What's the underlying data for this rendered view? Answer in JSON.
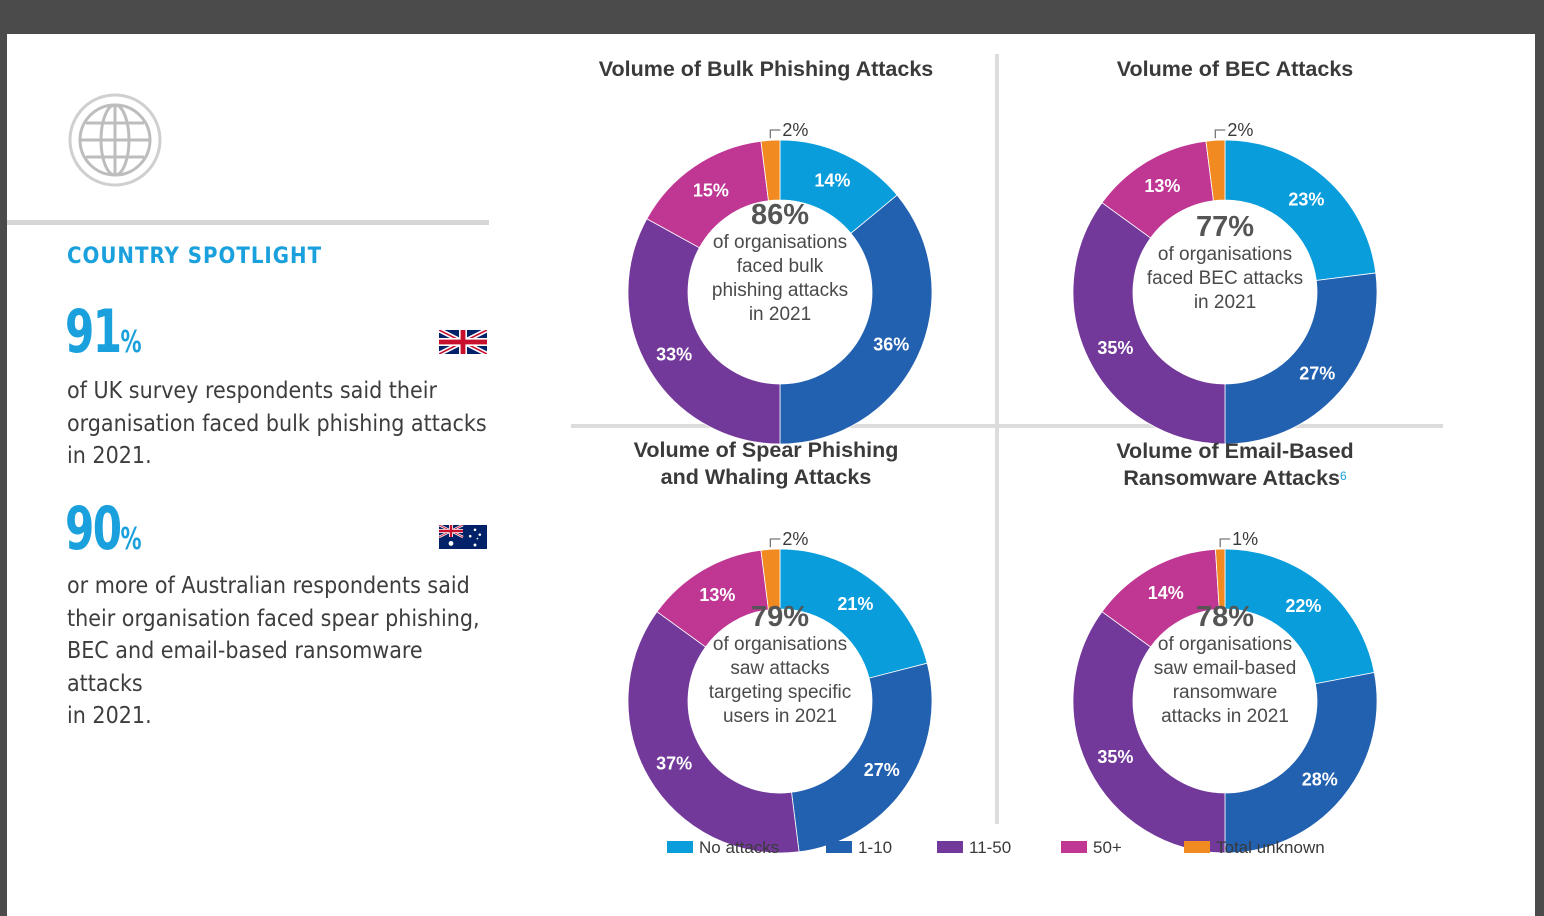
{
  "left": {
    "heading": "COUNTRY SPOTLIGHT",
    "stats": [
      {
        "number": "91",
        "unit": "%",
        "flag": "uk-flag",
        "text_lines": [
          "of UK survey respondents said their",
          "organisation faced bulk phishing attacks",
          "in 2021."
        ]
      },
      {
        "number": "90",
        "unit": "%",
        "flag": "australia-flag",
        "text_lines": [
          "or more of Australian respondents said",
          "their organisation faced spear phishing,",
          "BEC and email-based ransomware attacks",
          "in 2021."
        ]
      }
    ]
  },
  "colors": {
    "no_attacks": "#0a9ddc",
    "1_10": "#2260b0",
    "11_50": "#72399a",
    "50_plus": "#bf3693",
    "total_unknown": "#f18a21",
    "accent": "#1aa0dc"
  },
  "chart_data": [
    {
      "type": "pie",
      "title_lines": [
        "Volume of Bulk Phishing Attacks"
      ],
      "title_footnote": "",
      "categories": [
        "No attacks",
        "1-10",
        "11-50",
        "50+",
        "Total unknown"
      ],
      "values": [
        14,
        36,
        33,
        15,
        2
      ],
      "labels": [
        "14%",
        "36%",
        "33%",
        "15%",
        "2%"
      ],
      "center_value": "86%",
      "center_text": [
        "of organisations",
        "faced bulk",
        "phishing attacks",
        "in 2021"
      ]
    },
    {
      "type": "pie",
      "title_lines": [
        "Volume of BEC Attacks"
      ],
      "title_footnote": "",
      "categories": [
        "No attacks",
        "1-10",
        "11-50",
        "50+",
        "Total unknown"
      ],
      "values": [
        23,
        27,
        35,
        13,
        2
      ],
      "labels": [
        "23%",
        "27%",
        "35%",
        "13%",
        "2%"
      ],
      "center_value": "77%",
      "center_text": [
        "of organisations",
        "faced BEC attacks",
        "in 2021"
      ]
    },
    {
      "type": "pie",
      "title_lines": [
        "Volume of Spear Phishing",
        "and Whaling Attacks"
      ],
      "title_footnote": "",
      "categories": [
        "No attacks",
        "1-10",
        "11-50",
        "50+",
        "Total unknown"
      ],
      "values": [
        21,
        27,
        37,
        13,
        2
      ],
      "labels": [
        "21%",
        "27%",
        "37%",
        "13%",
        "2%"
      ],
      "center_value": "79%",
      "center_text": [
        "of organisations",
        "saw attacks",
        "targeting specific",
        "users in 2021"
      ]
    },
    {
      "type": "pie",
      "title_lines": [
        "Volume of Email-Based",
        "Ransomware Attacks"
      ],
      "title_footnote": "6",
      "categories": [
        "No attacks",
        "1-10",
        "11-50",
        "50+",
        "Total unknown"
      ],
      "values": [
        22,
        28,
        35,
        14,
        1
      ],
      "labels": [
        "22%",
        "28%",
        "35%",
        "14%",
        "1%"
      ],
      "center_value": "78%",
      "center_text": [
        "of organisations",
        "saw email-based",
        "ransomware",
        "attacks in 2021"
      ]
    }
  ],
  "legend": [
    {
      "label": "No attacks",
      "color": "#0a9ddc"
    },
    {
      "label": "1-10",
      "color": "#2260b0"
    },
    {
      "label": "11-50",
      "color": "#72399a"
    },
    {
      "label": "50+",
      "color": "#bf3693"
    },
    {
      "label": "Total unknown",
      "color": "#f18a21"
    }
  ]
}
